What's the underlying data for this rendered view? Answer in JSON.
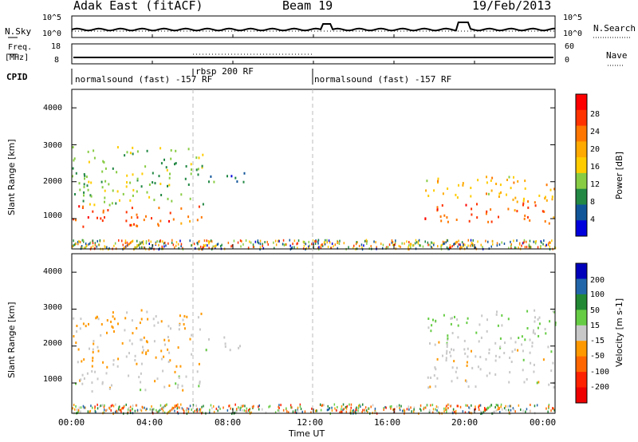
{
  "header": {
    "site": "Adak East (fitACF)",
    "beam": "Beam 19",
    "date": "19/Feb/2013"
  },
  "noise_panel": {
    "label": "N.Sky",
    "left_ticks": [
      "10^5",
      "10^0"
    ],
    "right_ticks": [
      "10^5",
      "10^0"
    ],
    "right_label": "N.Search"
  },
  "freq_panel": {
    "label_top": "Freq.",
    "label_unit": "[MHz]",
    "left_ticks": [
      "18",
      "8"
    ],
    "right_ticks": [
      "60",
      "0"
    ],
    "right_label": "Nave"
  },
  "cpid_panel": {
    "label": "CPID",
    "segments": [
      {
        "label": "normalsound (fast) -157 RF",
        "start": "00:00"
      },
      {
        "label": "rbsp 200 RF",
        "start": "06:00"
      },
      {
        "label": "normalsound (fast) -157 RF",
        "start": "12:00"
      }
    ]
  },
  "time_axis": {
    "title": "Time UT",
    "ticks": [
      "00:00",
      "04:00",
      "08:00",
      "12:00",
      "16:00",
      "20:00",
      "00:00"
    ]
  },
  "power_scale": {
    "label": "Power [dB]",
    "ticks": [
      "28",
      "24",
      "20",
      "16",
      "12",
      "8",
      "4"
    ],
    "colors": [
      "#ff0000",
      "#ff3300",
      "#ff7700",
      "#ffaa00",
      "#ffcc00",
      "#88cc44",
      "#228844",
      "#115599",
      "#0000dd"
    ]
  },
  "velocity_scale": {
    "label": "Velocity [m s-1]",
    "ticks": [
      "200",
      "100",
      "50",
      "15",
      "-15",
      "-50",
      "-100",
      "-200"
    ],
    "colors": [
      "#0000bb",
      "#2266aa",
      "#228833",
      "#66cc44",
      "#c8c8c8",
      "#ff9900",
      "#ff6600",
      "#ff2200",
      "#ee0000"
    ]
  },
  "chart_data": [
    {
      "type": "heatmap",
      "title": "Power",
      "xlabel": "Time UT",
      "ylabel": "Slant Range [km]",
      "yticks": [
        "1000",
        "2000",
        "3000",
        "4000"
      ],
      "x_range": [
        "00:00",
        "24:00"
      ],
      "y_range_km": [
        180,
        4500
      ],
      "color_range_db": [
        0,
        32
      ],
      "scatter_bands": [
        {
          "time_start_h": 0,
          "time_end_h": 6.5,
          "range_start_km": 800,
          "range_end_km": 1400,
          "power_db": 26
        },
        {
          "time_start_h": 0,
          "time_end_h": 6.5,
          "range_start_km": 1400,
          "range_end_km": 3000,
          "power_db": 12
        },
        {
          "time_start_h": 6.5,
          "time_end_h": 8.6,
          "range_start_km": 1900,
          "range_end_km": 2300,
          "power_db": 6
        },
        {
          "time_start_h": 17.5,
          "time_end_h": 24,
          "range_start_km": 900,
          "range_end_km": 1500,
          "power_db": 26
        },
        {
          "time_start_h": 17.5,
          "time_end_h": 24,
          "range_start_km": 1500,
          "range_end_km": 2200,
          "power_db": 18
        }
      ]
    },
    {
      "type": "heatmap",
      "title": "Velocity",
      "xlabel": "Time UT",
      "ylabel": "Slant Range [km]",
      "yticks": [
        "1000",
        "2000",
        "3000",
        "4000"
      ],
      "x_range": [
        "00:00",
        "24:00"
      ],
      "y_range_km": [
        180,
        4500
      ],
      "color_range_ms": [
        -250,
        250
      ],
      "scatter_bands": [
        {
          "time_start_h": 0,
          "time_end_h": 6.5,
          "range_start_km": 800,
          "range_end_km": 1400,
          "velocity_ms": 0
        },
        {
          "time_start_h": 0,
          "time_end_h": 6.5,
          "range_start_km": 1400,
          "range_end_km": 3000,
          "velocity_ms": -40
        },
        {
          "time_start_h": 6.5,
          "time_end_h": 8.6,
          "range_start_km": 1900,
          "range_end_km": 2300,
          "velocity_ms": 0
        },
        {
          "time_start_h": 17.5,
          "time_end_h": 24,
          "range_start_km": 900,
          "range_end_km": 2200,
          "velocity_ms": 0
        },
        {
          "time_start_h": 17.5,
          "time_end_h": 24,
          "range_start_km": 2200,
          "range_end_km": 3000,
          "velocity_ms": 30
        }
      ]
    }
  ]
}
